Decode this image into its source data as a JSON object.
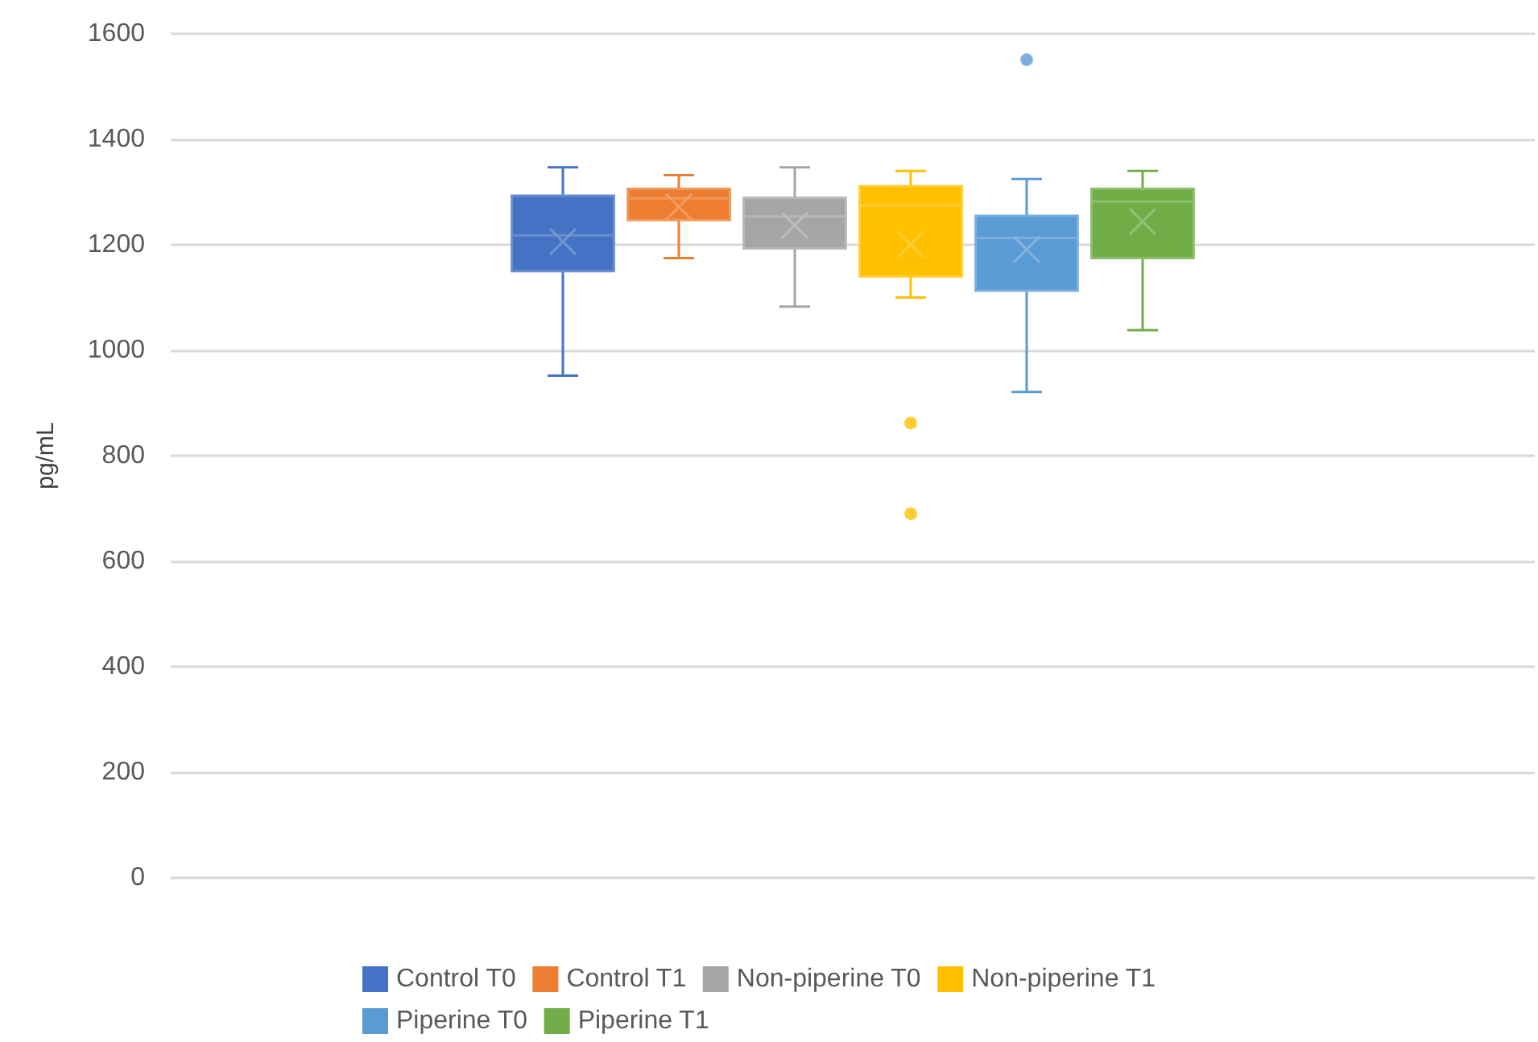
{
  "chart_data": {
    "type": "box",
    "ylabel": "pg/mL",
    "categories": [
      null
    ],
    "ylim": [
      0,
      1600
    ],
    "yticks": [
      0,
      200,
      400,
      600,
      800,
      1000,
      1200,
      1400,
      1600
    ],
    "grid": "y",
    "legend": "bottom",
    "marker": "circle",
    "series": [
      {
        "name": "Control T0",
        "color": "#4472c4",
        "boxes": [
          {
            "low": 952,
            "q1": 1150,
            "median": 1218,
            "q3": 1293,
            "high": 1347,
            "mean": 1206
          }
        ]
      },
      {
        "name": "Control T1",
        "color": "#ed7d31",
        "boxes": [
          {
            "low": 1175,
            "q1": 1247,
            "median": 1288,
            "q3": 1306,
            "high": 1332,
            "mean": 1272
          }
        ]
      },
      {
        "name": "Non-piperine T0",
        "color": "#a5a5a5",
        "boxes": [
          {
            "low": 1083,
            "q1": 1193,
            "median": 1254,
            "q3": 1289,
            "high": 1347,
            "mean": 1237
          }
        ]
      },
      {
        "name": "Non-piperine T1",
        "color": "#ffc000",
        "boxes": [
          {
            "low": 1100,
            "q1": 1140,
            "median": 1275,
            "q3": 1311,
            "high": 1340,
            "mean": 1201,
            "outliers": [
              862,
              690
            ]
          }
        ]
      },
      {
        "name": "Piperine T0",
        "color": "#5b9bd5",
        "boxes": [
          {
            "low": 921,
            "q1": 1113,
            "median": 1213,
            "q3": 1255,
            "high": 1325,
            "mean": 1191,
            "outliers": [
              1551
            ]
          }
        ]
      },
      {
        "name": "Piperine T1",
        "color": "#70ad47",
        "boxes": [
          {
            "low": 1038,
            "q1": 1175,
            "median": 1282,
            "q3": 1306,
            "high": 1340,
            "mean": 1244
          }
        ]
      }
    ]
  }
}
